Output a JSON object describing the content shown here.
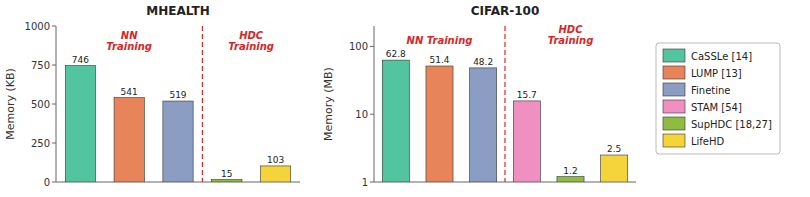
{
  "chart_data": [
    {
      "type": "bar",
      "title": "MHEALTH",
      "y_label": "Memory (KB)",
      "categories": [
        null,
        null,
        null,
        null,
        null
      ],
      "values": [
        746,
        541,
        519,
        15,
        103
      ],
      "colors": [
        "#52c5a0",
        "#e8845a",
        "#8b9dc3",
        "#8fbc3f",
        "#f5d43b"
      ],
      "ylim": [
        0,
        1000
      ],
      "yticks": [
        0,
        250,
        500,
        750,
        1000
      ],
      "data_labels": true,
      "tick_labels": "y",
      "annotations": [
        {
          "text": "NN\nTraining"
        },
        {
          "text": "HDC\nTraining"
        },
        {
          "x": 2.5,
          "line_style": "dashed"
        }
      ]
    },
    {
      "type": "bar",
      "title": "CIFAR-100",
      "y_label": "Memory (MB)",
      "categories": [
        "CaSSLe [14]",
        "LUMP [13]",
        "Finetine",
        "STAM [54]",
        "SupHDC [18,27]",
        "LifeHD"
      ],
      "values": [
        62.8,
        51.4,
        48.2,
        15.7,
        1.2,
        2.5
      ],
      "colors": [
        "#52c5a0",
        "#e8845a",
        "#8b9dc3",
        "#f090c0",
        "#8fbc3f",
        "#f5d43b"
      ],
      "log": "y",
      "ylim": [
        1,
        200
      ],
      "yticks": [
        1,
        10,
        100
      ],
      "data_labels": true,
      "tick_labels": "y",
      "legend": "right",
      "annotations": [
        {
          "text": "NN Training"
        },
        {
          "text": "HDC\nTraining"
        },
        {
          "x": 2.5,
          "line_style": "dashed"
        }
      ]
    }
  ]
}
